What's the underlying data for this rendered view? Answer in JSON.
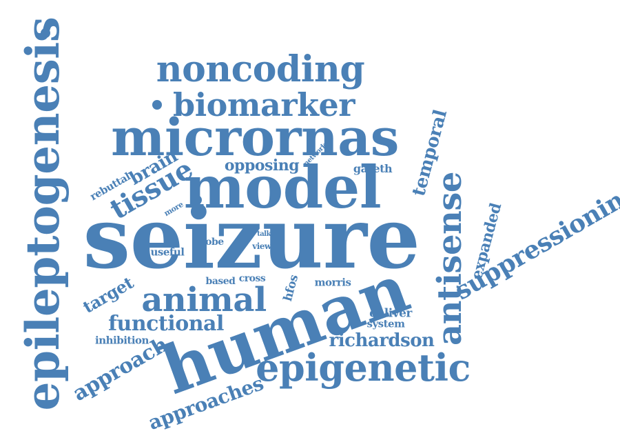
{
  "color": "#4a80b6",
  "words": {
    "seizure": "seizure",
    "human": "human",
    "model": "model",
    "micrornas": "micrornas",
    "epileptogenesis": "epileptogenesis",
    "epigenetic": "epigenetic",
    "noncoding": "noncoding",
    "biomarker": "biomarker",
    "antisense": "antisense",
    "animal": "animal",
    "tissue": "tissue",
    "suppressionin": "suppressionin",
    "functional": "functional",
    "richardson": "richardson",
    "approach": "approach",
    "approaches": "approaches",
    "temporal": "temporal",
    "brain": "brain",
    "opposing": "opposing",
    "expanded": "expanded",
    "target": "target",
    "gareth": "gareth",
    "network": "network",
    "rebuttal": "rebuttal",
    "more": "more",
    "useful": "useful",
    "lobe": "lobe",
    "view": "view",
    "talk": "talk",
    "based": "based",
    "cross": "cross",
    "hfos": "hfos",
    "morris": "morris",
    "deliver": "deliver",
    "system": "system",
    "inhibition": "inhibition"
  }
}
